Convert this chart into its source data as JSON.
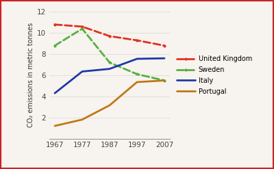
{
  "years": [
    1967,
    1977,
    1987,
    1997,
    2007
  ],
  "series": {
    "United Kingdom": [
      10.8,
      10.6,
      9.7,
      9.3,
      8.8
    ],
    "Sweden": [
      8.8,
      10.4,
      7.2,
      6.1,
      5.5
    ],
    "Italy": [
      4.3,
      6.35,
      6.6,
      7.55,
      7.6
    ],
    "Portugal": [
      1.2,
      1.8,
      3.15,
      5.35,
      5.5
    ]
  },
  "colors": {
    "United Kingdom": "#e03020",
    "Sweden": "#55b040",
    "Italy": "#1a3aaa",
    "Portugal": "#c07818"
  },
  "linestyles": {
    "United Kingdom": "--",
    "Sweden": "--",
    "Italy": "-",
    "Portugal": "-"
  },
  "dashed_dot": {
    "United Kingdom": true,
    "Sweden": true,
    "Italy": false,
    "Portugal": false
  },
  "ylabel": "CO₂ emissions in metric tonnes",
  "ylim": [
    0,
    12
  ],
  "yticks": [
    0,
    2,
    4,
    6,
    8,
    10,
    12
  ],
  "background_color": "#f7f3ee",
  "border_color": "#cc2222",
  "linewidth": 2.0,
  "legend_entries": [
    "United Kingdom",
    "Sweden",
    "Italy",
    "Portugal"
  ]
}
